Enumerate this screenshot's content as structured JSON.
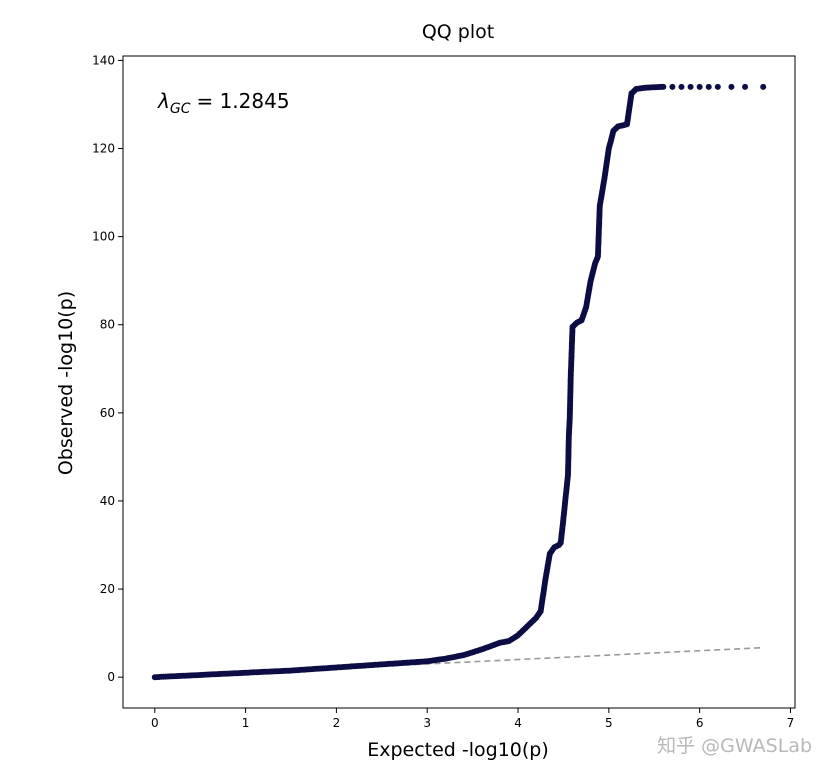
{
  "chart_data": {
    "type": "scatter",
    "title": "QQ plot",
    "xlabel": "Expected -log10(p)",
    "ylabel": "Observed -log10(p)",
    "xlim": [
      -0.35,
      7.05
    ],
    "ylim": [
      -7,
      141
    ],
    "xticks": [
      0,
      1,
      2,
      3,
      4,
      5,
      6,
      7
    ],
    "yticks": [
      0,
      20,
      40,
      60,
      80,
      100,
      120,
      140
    ],
    "xtick_labels": [
      "0",
      "1",
      "2",
      "3",
      "4",
      "5",
      "6",
      "7"
    ],
    "ytick_labels": [
      "0",
      "20",
      "40",
      "60",
      "80",
      "100",
      "120",
      "140"
    ],
    "annotation": {
      "symbol": "λ",
      "subscript": "GC",
      "text": "= 1.2845"
    },
    "reference_line": {
      "style": "dashed",
      "color": "#999999",
      "from": [
        0,
        0
      ],
      "to": [
        6.7,
        6.7
      ]
    },
    "marker_color": "#0d0d45",
    "curve": [
      [
        0,
        0
      ],
      [
        0.5,
        0.5
      ],
      [
        1,
        1.0
      ],
      [
        1.5,
        1.5
      ],
      [
        2,
        2.2
      ],
      [
        2.5,
        2.9
      ],
      [
        3,
        3.6
      ],
      [
        3.2,
        4.2
      ],
      [
        3.4,
        5.0
      ],
      [
        3.6,
        6.3
      ],
      [
        3.8,
        7.8
      ],
      [
        3.9,
        8.2
      ],
      [
        4.0,
        9.5
      ],
      [
        4.1,
        11.5
      ],
      [
        4.2,
        13.5
      ],
      [
        4.25,
        15
      ],
      [
        4.3,
        22
      ],
      [
        4.35,
        28
      ],
      [
        4.4,
        29.5
      ],
      [
        4.45,
        30
      ],
      [
        4.47,
        30.5
      ],
      [
        4.5,
        36
      ],
      [
        4.53,
        42
      ],
      [
        4.55,
        46
      ],
      [
        4.56,
        55
      ],
      [
        4.57,
        59
      ],
      [
        4.58,
        68
      ],
      [
        4.6,
        79.5
      ],
      [
        4.65,
        80.5
      ],
      [
        4.7,
        81
      ],
      [
        4.75,
        84
      ],
      [
        4.8,
        90
      ],
      [
        4.85,
        94
      ],
      [
        4.88,
        95.5
      ],
      [
        4.9,
        107
      ],
      [
        4.95,
        113
      ],
      [
        5.0,
        120
      ],
      [
        5.05,
        124
      ],
      [
        5.1,
        125
      ],
      [
        5.2,
        125.5
      ],
      [
        5.25,
        132.5
      ],
      [
        5.3,
        133.5
      ],
      [
        5.4,
        133.8
      ],
      [
        5.6,
        134
      ]
    ],
    "tail_points": [
      [
        5.7,
        134
      ],
      [
        5.8,
        134
      ],
      [
        5.9,
        134
      ],
      [
        6.0,
        134
      ],
      [
        6.1,
        134
      ],
      [
        6.2,
        134
      ],
      [
        6.35,
        134
      ],
      [
        6.5,
        134
      ],
      [
        6.7,
        134
      ]
    ]
  },
  "watermark": "知乎 @GWASLab"
}
